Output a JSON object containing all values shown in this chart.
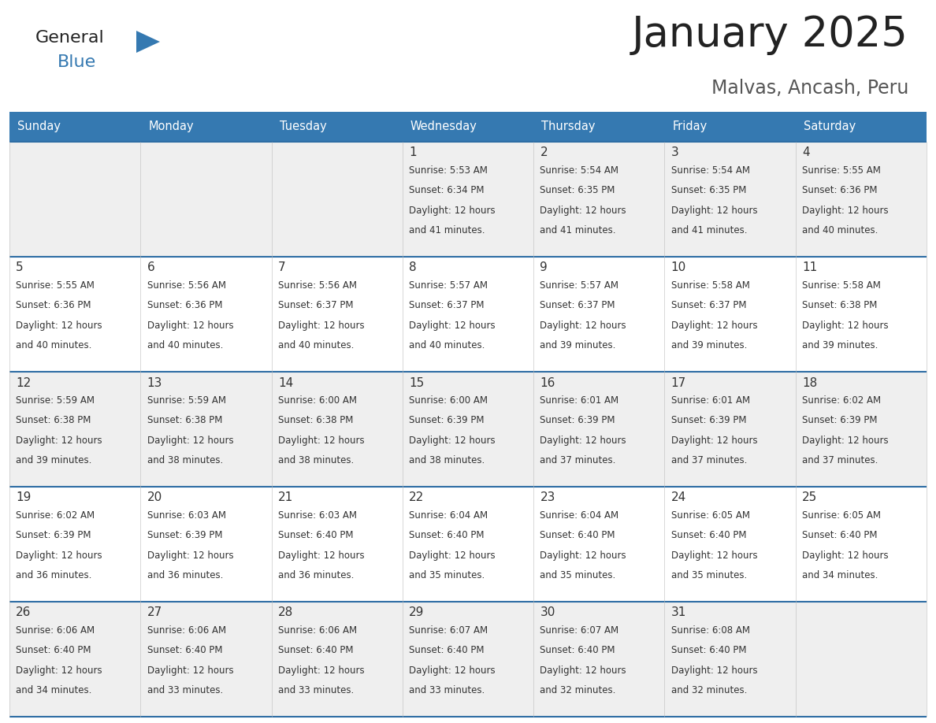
{
  "title": "January 2025",
  "subtitle": "Malvas, Ancash, Peru",
  "days_of_week": [
    "Sunday",
    "Monday",
    "Tuesday",
    "Wednesday",
    "Thursday",
    "Friday",
    "Saturday"
  ],
  "header_bg": "#3579B1",
  "header_text": "#FFFFFF",
  "row_bg_even": "#EFEFEF",
  "row_bg_odd": "#FFFFFF",
  "divider_color": "#2E6DA4",
  "text_color": "#333333",
  "title_color": "#222222",
  "subtitle_color": "#555555",
  "calendar_data": [
    [
      null,
      null,
      null,
      {
        "day": 1,
        "sunrise": "5:53 AM",
        "sunset": "6:34 PM",
        "daylight": "12 hours and 41 minutes."
      },
      {
        "day": 2,
        "sunrise": "5:54 AM",
        "sunset": "6:35 PM",
        "daylight": "12 hours and 41 minutes."
      },
      {
        "day": 3,
        "sunrise": "5:54 AM",
        "sunset": "6:35 PM",
        "daylight": "12 hours and 41 minutes."
      },
      {
        "day": 4,
        "sunrise": "5:55 AM",
        "sunset": "6:36 PM",
        "daylight": "12 hours and 40 minutes."
      }
    ],
    [
      {
        "day": 5,
        "sunrise": "5:55 AM",
        "sunset": "6:36 PM",
        "daylight": "12 hours and 40 minutes."
      },
      {
        "day": 6,
        "sunrise": "5:56 AM",
        "sunset": "6:36 PM",
        "daylight": "12 hours and 40 minutes."
      },
      {
        "day": 7,
        "sunrise": "5:56 AM",
        "sunset": "6:37 PM",
        "daylight": "12 hours and 40 minutes."
      },
      {
        "day": 8,
        "sunrise": "5:57 AM",
        "sunset": "6:37 PM",
        "daylight": "12 hours and 40 minutes."
      },
      {
        "day": 9,
        "sunrise": "5:57 AM",
        "sunset": "6:37 PM",
        "daylight": "12 hours and 39 minutes."
      },
      {
        "day": 10,
        "sunrise": "5:58 AM",
        "sunset": "6:37 PM",
        "daylight": "12 hours and 39 minutes."
      },
      {
        "day": 11,
        "sunrise": "5:58 AM",
        "sunset": "6:38 PM",
        "daylight": "12 hours and 39 minutes."
      }
    ],
    [
      {
        "day": 12,
        "sunrise": "5:59 AM",
        "sunset": "6:38 PM",
        "daylight": "12 hours and 39 minutes."
      },
      {
        "day": 13,
        "sunrise": "5:59 AM",
        "sunset": "6:38 PM",
        "daylight": "12 hours and 38 minutes."
      },
      {
        "day": 14,
        "sunrise": "6:00 AM",
        "sunset": "6:38 PM",
        "daylight": "12 hours and 38 minutes."
      },
      {
        "day": 15,
        "sunrise": "6:00 AM",
        "sunset": "6:39 PM",
        "daylight": "12 hours and 38 minutes."
      },
      {
        "day": 16,
        "sunrise": "6:01 AM",
        "sunset": "6:39 PM",
        "daylight": "12 hours and 37 minutes."
      },
      {
        "day": 17,
        "sunrise": "6:01 AM",
        "sunset": "6:39 PM",
        "daylight": "12 hours and 37 minutes."
      },
      {
        "day": 18,
        "sunrise": "6:02 AM",
        "sunset": "6:39 PM",
        "daylight": "12 hours and 37 minutes."
      }
    ],
    [
      {
        "day": 19,
        "sunrise": "6:02 AM",
        "sunset": "6:39 PM",
        "daylight": "12 hours and 36 minutes."
      },
      {
        "day": 20,
        "sunrise": "6:03 AM",
        "sunset": "6:39 PM",
        "daylight": "12 hours and 36 minutes."
      },
      {
        "day": 21,
        "sunrise": "6:03 AM",
        "sunset": "6:40 PM",
        "daylight": "12 hours and 36 minutes."
      },
      {
        "day": 22,
        "sunrise": "6:04 AM",
        "sunset": "6:40 PM",
        "daylight": "12 hours and 35 minutes."
      },
      {
        "day": 23,
        "sunrise": "6:04 AM",
        "sunset": "6:40 PM",
        "daylight": "12 hours and 35 minutes."
      },
      {
        "day": 24,
        "sunrise": "6:05 AM",
        "sunset": "6:40 PM",
        "daylight": "12 hours and 35 minutes."
      },
      {
        "day": 25,
        "sunrise": "6:05 AM",
        "sunset": "6:40 PM",
        "daylight": "12 hours and 34 minutes."
      }
    ],
    [
      {
        "day": 26,
        "sunrise": "6:06 AM",
        "sunset": "6:40 PM",
        "daylight": "12 hours and 34 minutes."
      },
      {
        "day": 27,
        "sunrise": "6:06 AM",
        "sunset": "6:40 PM",
        "daylight": "12 hours and 33 minutes."
      },
      {
        "day": 28,
        "sunrise": "6:06 AM",
        "sunset": "6:40 PM",
        "daylight": "12 hours and 33 minutes."
      },
      {
        "day": 29,
        "sunrise": "6:07 AM",
        "sunset": "6:40 PM",
        "daylight": "12 hours and 33 minutes."
      },
      {
        "day": 30,
        "sunrise": "6:07 AM",
        "sunset": "6:40 PM",
        "daylight": "12 hours and 32 minutes."
      },
      {
        "day": 31,
        "sunrise": "6:08 AM",
        "sunset": "6:40 PM",
        "daylight": "12 hours and 32 minutes."
      },
      null
    ]
  ],
  "logo_general_color": "#222222",
  "logo_blue_color": "#3579B1",
  "logo_triangle_color": "#3579B1"
}
